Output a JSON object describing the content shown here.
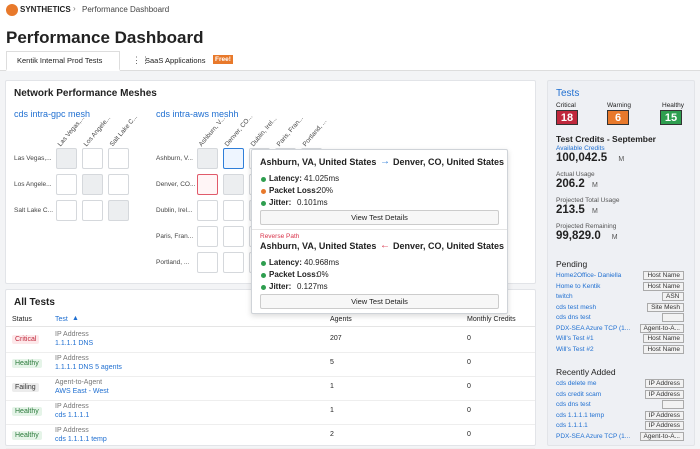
{
  "breadcrumb": {
    "brand": "SYNTHETICS",
    "page": "Performance Dashboard"
  },
  "title": "Performance Dashboard",
  "tabs": [
    {
      "label": "Kentik Internal Prod Tests"
    },
    {
      "label": "SaaS Applications",
      "badge": "Free!"
    }
  ],
  "meshes": {
    "title": "Network Performance Meshes",
    "groups": [
      {
        "name": "cds intra-gpc mesh",
        "agents": [
          "Las Vegas,...",
          "Los Angele...",
          "Salt Lake C..."
        ]
      },
      {
        "name": "cds intra-aws meshh",
        "agents": [
          "Ashburn, V...",
          "Denver, CO...",
          "Dublin, Irel...",
          "Paris, Fran...",
          "Portland, ..."
        ]
      }
    ]
  },
  "tooltip": {
    "forward": {
      "from": "Ashburn, VA, United States",
      "to": "Denver, CO, United States",
      "metrics": [
        {
          "label": "Latency:",
          "value": "41.025ms"
        },
        {
          "label": "Packet Loss:",
          "value": "20%"
        },
        {
          "label": "Jitter:",
          "value": "0.101ms"
        }
      ],
      "button": "View Test Details"
    },
    "reverse_label": "Reverse Path",
    "reverse": {
      "from": "Ashburn, VA, United States",
      "to": "Denver, CO, United States",
      "metrics": [
        {
          "label": "Latency:",
          "value": "40.968ms"
        },
        {
          "label": "Packet Loss:",
          "value": "0%"
        },
        {
          "label": "Jitter:",
          "value": "0.127ms"
        }
      ],
      "button": "View Test Details"
    }
  },
  "all_tests": {
    "title": "All Tests",
    "columns": [
      "Status",
      "Test",
      "Agents",
      "Monthly Credits"
    ],
    "rows": [
      {
        "status": "Critical",
        "type": "IP Address",
        "name": "1.1.1.1 DNS",
        "agents": 207,
        "credits": 0
      },
      {
        "status": "Healthy",
        "type": "IP Address",
        "name": "1.1.1.1 DNS 5 agents",
        "agents": 5,
        "credits": 0
      },
      {
        "status": "Failing",
        "type": "Agent-to-Agent",
        "name": "AWS East - West",
        "agents": 1,
        "credits": 0
      },
      {
        "status": "Healthy",
        "type": "IP Address",
        "name": "cds 1.1.1.1",
        "agents": 1,
        "credits": 0
      },
      {
        "status": "Healthy",
        "type": "IP Address",
        "name": "cds 1.1.1.1 temp",
        "agents": 2,
        "credits": 0
      }
    ]
  },
  "summary": {
    "title": "Tests",
    "counts": [
      {
        "label": "Critical",
        "value": 18
      },
      {
        "label": "Warning",
        "value": 6
      },
      {
        "label": "Healthy",
        "value": 15
      }
    ],
    "credits": {
      "title": "Test Credits - September",
      "items": [
        {
          "label": "Available Credits",
          "value": "100,042.5",
          "unit": "M"
        },
        {
          "label": "Actual Usage",
          "value": "206.2",
          "unit": "M"
        },
        {
          "label": "Projected Total Usage",
          "value": "213.5",
          "unit": "M"
        },
        {
          "label": "Projected Remaining",
          "value": "99,829.0",
          "unit": "M"
        }
      ]
    },
    "pending": {
      "title": "Pending",
      "items": [
        {
          "name": "Home2Office- Daniella",
          "tag": "Host Name"
        },
        {
          "name": "Home to Kentik",
          "tag": "Host Name"
        },
        {
          "name": "twitch",
          "tag": "ASN"
        },
        {
          "name": "cds test mesh",
          "tag": "Site Mesh"
        },
        {
          "name": "cds dns test"
        },
        {
          "name": "PDX-SEA Azure TCP (1...",
          "tag": "Agent-to-A..."
        },
        {
          "name": "Will's Test #1",
          "tag": "Host Name"
        },
        {
          "name": "Will's Test #2",
          "tag": "Host Name"
        }
      ]
    },
    "recent": {
      "title": "Recently Added",
      "items": [
        {
          "name": "cds delete me",
          "tag": "IP Address"
        },
        {
          "name": "cds credit scam",
          "tag": "IP Address"
        },
        {
          "name": "cds dns test"
        },
        {
          "name": "cds 1.1.1.1 temp",
          "tag": "IP Address"
        },
        {
          "name": "cds 1.1.1.1",
          "tag": "IP Address"
        },
        {
          "name": "PDX-SEA Azure TCP (1...",
          "tag": "Agent-to-A..."
        }
      ]
    }
  }
}
